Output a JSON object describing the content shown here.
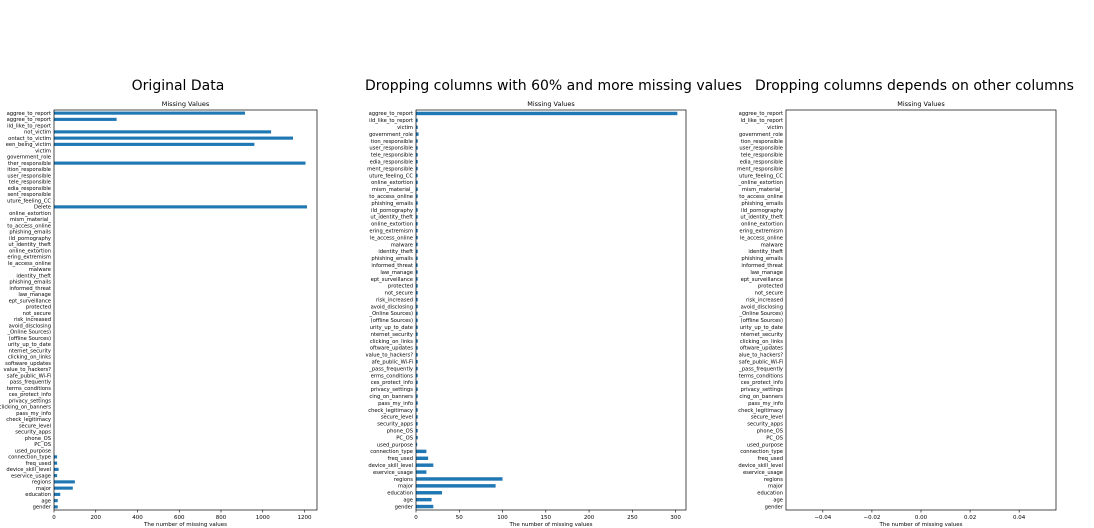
{
  "captions": [
    "Original Data",
    "Dropping columns with 60% and more missing values",
    "Dropping columns depends on other columns"
  ],
  "colors": {
    "bar": "#1f77b4",
    "axis": "#000000"
  },
  "chart_data": [
    {
      "type": "bar",
      "orientation": "horizontal",
      "title": "Missing Values",
      "xlabel": "The number of missing values",
      "xlim": [
        0,
        1260
      ],
      "xticks": [
        0,
        200,
        400,
        600,
        800,
        1000,
        1200
      ],
      "categories": [
        "gender",
        "age",
        "education",
        "major",
        "regions",
        "eservice_usage",
        "device_skill_level",
        "freq_used",
        "connection_type",
        "used_purpose",
        "PC_OS",
        "phone_OS",
        "security_apps",
        "secure_level",
        "check_legitimacy",
        "pass_my_info",
        "clicking_on_banners",
        "privacy_settings",
        "ces_protect_info",
        "terms_conditions",
        "pass_frequently",
        "safe_public_Wi-Fi",
        "value_to_hackers?",
        "software_updates",
        "clicking_on_links",
        "nternet_security",
        "urity_up_to_date",
        "(offline Sources)",
        "_Online Sources)",
        "avoid_disclosing",
        "risk_increased",
        "not_secure",
        "protected",
        "ept_surveillance",
        "law_manage",
        "informed_threat",
        "phishing_emails",
        "identity_theft",
        "malware",
        "le_access_online",
        "ering_extremism",
        "online_extortion",
        "ut_identity_theft",
        "ild_pornography",
        "phishing_emails",
        "to_access_online",
        "mism_material_",
        "online_extortion",
        "Delete",
        "uture_feeling_CC",
        "sent_responsible",
        "edia_responsible",
        "tele_responsible",
        "user_responsible",
        "ition_responsible",
        "ther_responsible",
        "government_role",
        "victim",
        "een_being_victim",
        "ontact_to_victim",
        "not_victim",
        "ild_like_to_report",
        "aggree_to_report",
        "aggree_to_report"
      ],
      "values": [
        18,
        18,
        30,
        90,
        100,
        15,
        22,
        15,
        15,
        0,
        0,
        0,
        0,
        0,
        0,
        0,
        0,
        0,
        0,
        0,
        0,
        0,
        0,
        0,
        0,
        0,
        0,
        0,
        0,
        0,
        0,
        0,
        0,
        0,
        0,
        0,
        0,
        0,
        0,
        0,
        0,
        0,
        0,
        0,
        0,
        0,
        0,
        0,
        1212,
        0,
        0,
        0,
        0,
        0,
        0,
        1205,
        0,
        0,
        960,
        1145,
        1040,
        0,
        300,
        915
      ]
    },
    {
      "type": "bar",
      "orientation": "horizontal",
      "title": "Missing Values",
      "xlabel": "The number of missing values",
      "xlim": [
        0,
        312
      ],
      "xticks": [
        0,
        50,
        100,
        150,
        200,
        250,
        300
      ],
      "categories": [
        "gender",
        "age",
        "education",
        "major",
        "regions",
        "eservice_usage",
        "device_skill_level",
        "freq_used",
        "connection_type",
        "used_purpose",
        "PC_OS",
        "phone_OS",
        "security_apps",
        "secure_level",
        "check_legitimacy",
        "pass_my_info",
        "cing_on_banners",
        "privacy_settings",
        "ces_protect_info",
        "erms_conditions",
        "_pass_frequently",
        "afe_public_Wi-Fi",
        "value_to_hackers?",
        "oftware_updates",
        "clicking_on_links",
        "nternet_security",
        "urity_up_to_date",
        "(offline Sources)",
        "_Online Sources)",
        "avoid_disclosing",
        "risk_increased",
        "not_secure",
        "protected",
        "ept_surveillance",
        "law_manage",
        "informed_threat",
        "phishing_emails",
        "identity_theft",
        "malware",
        "le_access_online",
        "ering_extremism",
        "online_extortion",
        "ut_identity_theft",
        "ild_pornography",
        "phishing_emails",
        "to_access_online",
        "mism_material_",
        "online_extortion",
        "uture_feeling_CC",
        "ment_responsible",
        "edia_responsible",
        "tele_responsible",
        "user_responsible",
        "tion_responsible",
        "government_role",
        "victim",
        "ild_like_to_report",
        "aggree_to_report"
      ],
      "values": [
        20,
        18,
        30,
        92,
        100,
        12,
        20,
        14,
        12,
        1,
        2,
        2,
        2,
        2,
        2,
        2,
        2,
        2,
        2,
        2,
        2,
        2,
        2,
        2,
        2,
        2,
        2,
        2,
        2,
        2,
        2,
        2,
        2,
        2,
        2,
        2,
        2,
        2,
        2,
        2,
        2,
        2,
        2,
        2,
        2,
        2,
        2,
        2,
        2,
        2,
        2,
        2,
        2,
        2,
        3,
        2,
        2,
        302
      ]
    },
    {
      "type": "bar",
      "orientation": "horizontal",
      "title": "Missing Values",
      "xlabel": "The number of missing values",
      "xlim": [
        -0.055,
        0.055
      ],
      "xticks": [
        -0.04,
        -0.02,
        0.0,
        0.02,
        0.04
      ],
      "xtick_labels": [
        "−0.04",
        "−0.02",
        "0.00",
        "0.02",
        "0.04"
      ],
      "categories": [
        "gender",
        "age",
        "education",
        "major",
        "regions",
        "eservice_usage",
        "device_skill_level",
        "freq_used",
        "connection_type",
        "used_purpose",
        "PC_OS",
        "phone_OS",
        "security_apps",
        "secure_level",
        "check_legitimacy",
        "pass_my_info",
        "cing_on_banners",
        "privacy_settings",
        "ces_protect_info",
        "terms_conditions",
        "_pass_frequently",
        "safe_public_Wi-Fi",
        "alue_to_hackers?",
        "oftware_updates",
        "clicking_on_links",
        "nternet_security",
        "urity_up_to_date",
        "(offline Sources)",
        "_Online Sources)",
        "avoid_disclosing",
        "risk_increased",
        "not_secure",
        "protected",
        "ept_surveillance",
        "law_manage",
        "informed_threat",
        "phishing_emails",
        "identity_theft",
        "malware",
        "le_access_online",
        "ering_extremism",
        "online_extortion",
        "ut_identity_theft",
        "ild_pornography",
        "phishing_emails",
        "to_access_online",
        "mism_material_",
        "_online_extortion",
        "uture_feeling_CC",
        "ment_responsible",
        "edia_responsible",
        "tele_responsible",
        "user_responsible",
        "tion_responsible",
        "government_role",
        "victim",
        "ld_like_to_report",
        "aggree_to_report"
      ],
      "values": [
        0,
        0,
        0,
        0,
        0,
        0,
        0,
        0,
        0,
        0,
        0,
        0,
        0,
        0,
        0,
        0,
        0,
        0,
        0,
        0,
        0,
        0,
        0,
        0,
        0,
        0,
        0,
        0,
        0,
        0,
        0,
        0,
        0,
        0,
        0,
        0,
        0,
        0,
        0,
        0,
        0,
        0,
        0,
        0,
        0,
        0,
        0,
        0,
        0,
        0,
        0,
        0,
        0,
        0,
        0,
        0,
        0,
        0
      ]
    }
  ]
}
